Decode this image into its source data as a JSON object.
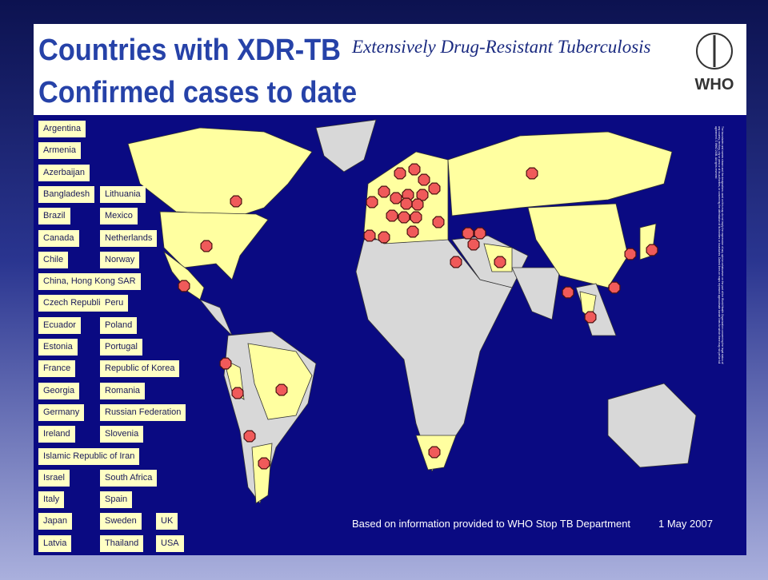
{
  "header": {
    "title_line1": "Countries with XDR-TB",
    "title_line2": "Confirmed cases to date",
    "subtitle": "Extensively Drug-Resistant Tuberculosis",
    "logo_text": "WHO"
  },
  "countries": [
    "Argentina",
    "Armenia",
    "Azerbaijan",
    "Bangladesh",
    "Brazil",
    "Canada",
    "Chile",
    "China, Hong Kong SAR",
    "Czech Republic",
    "Ecuador",
    "Estonia",
    "France",
    "Georgia",
    "Germany",
    "Ireland",
    "Islamic Republic of Iran",
    "Israel",
    "Italy",
    "Japan",
    "Latvia",
    "Lithuania",
    "Mexico",
    "Netherlands",
    "Norway",
    "Peru",
    "Poland",
    "Portugal",
    "Republic of Korea",
    "Romania",
    "Russian Federation",
    "Slovenia",
    "South Africa",
    "Spain",
    "Sweden",
    "Thailand",
    "UK",
    "USA"
  ],
  "footer": {
    "source": "Based on information provided to WHO Stop TB Department",
    "date": "1 May 2007"
  },
  "disclaimer": "The boundaries and names shown and the designations used on this map do not imply the expression of any opinion whatsoever on the part of the World Health Organization concerning the legal status of any country, territory, city or area or of its authorities, or concerning the delimitation of its frontiers or boundaries. Dotted lines on maps represent approximate border lines for which there may not yet be full agreement. © WHO 2006. All rights reserved"
}
